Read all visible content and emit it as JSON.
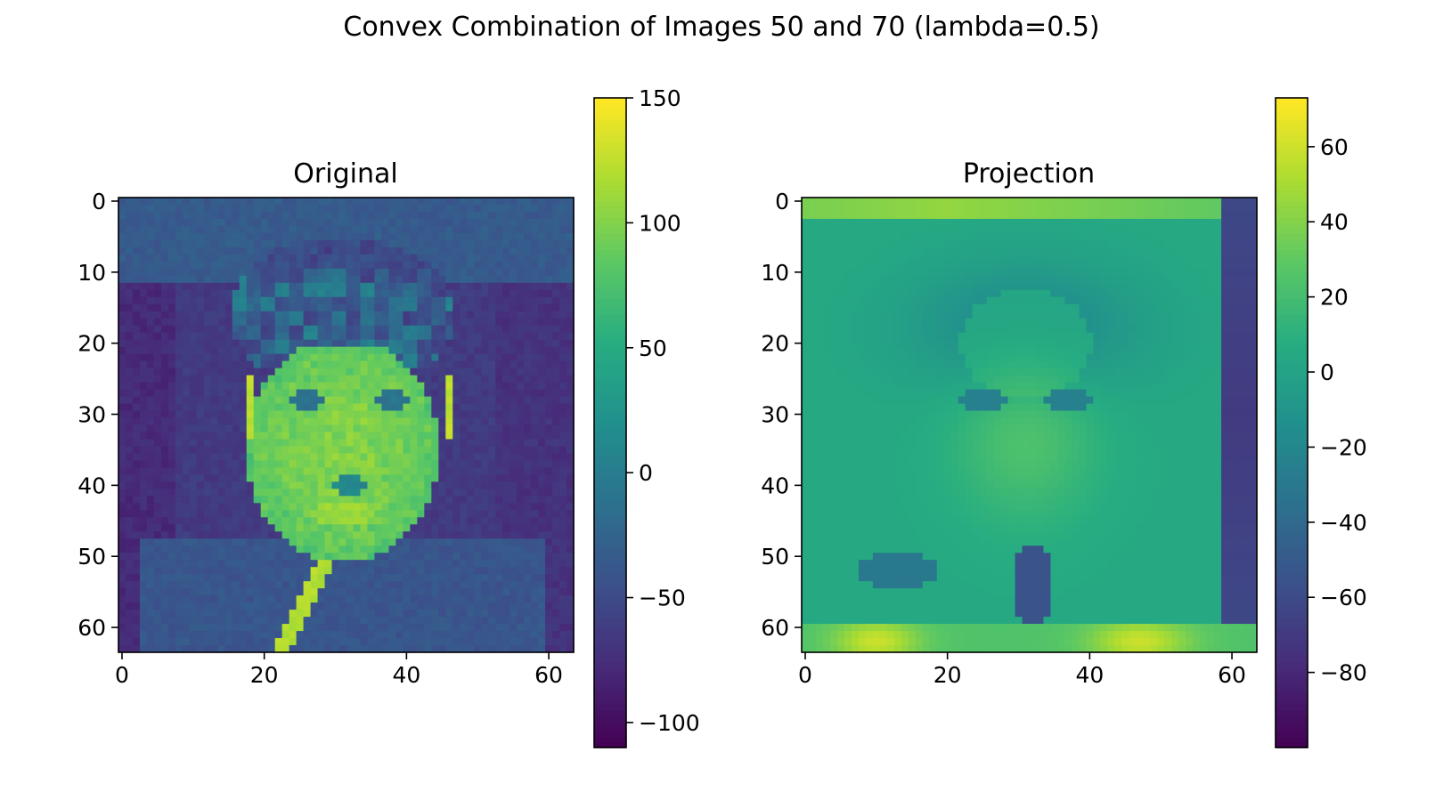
{
  "figure": {
    "title": "Convex Combination of Images 50 and 70 (lambda=0.5)"
  },
  "colormap": "viridis",
  "chart_data": [
    {
      "type": "heatmap",
      "title": "Original",
      "image_shape": [
        64,
        64
      ],
      "xlim": [
        -0.5,
        63.5
      ],
      "ylim": [
        63.5,
        -0.5
      ],
      "xticks": [
        0,
        20,
        40,
        60
      ],
      "yticks": [
        0,
        10,
        20,
        30,
        40,
        50,
        60
      ],
      "colorbar": {
        "vmin": -110,
        "vmax": 150,
        "ticks": [
          -100,
          -50,
          0,
          50,
          100,
          150
        ]
      },
      "content": "grayscale face photograph (man with short hair, light shirt and tie) rendered in viridis"
    },
    {
      "type": "heatmap",
      "title": "Projection",
      "image_shape": [
        64,
        64
      ],
      "xlim": [
        -0.5,
        63.5
      ],
      "ylim": [
        63.5,
        -0.5
      ],
      "xticks": [
        0,
        20,
        40,
        60
      ],
      "yticks": [
        0,
        10,
        20,
        30,
        40,
        50,
        60
      ],
      "colorbar": {
        "vmin": -100,
        "vmax": 73,
        "ticks": [
          -80,
          -60,
          -40,
          -20,
          0,
          20,
          40,
          60
        ]
      },
      "content": "smooth low-rank projection of a face with bright borders, rendered in viridis"
    }
  ]
}
